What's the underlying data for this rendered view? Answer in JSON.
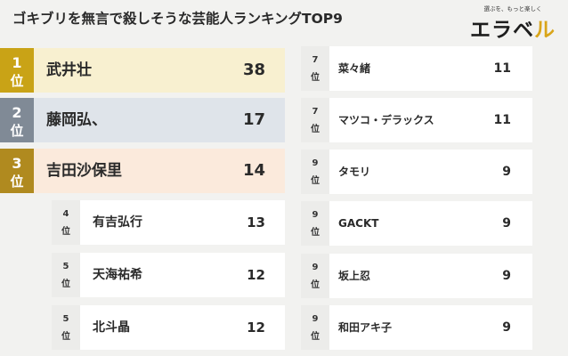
{
  "title": "ゴキブリを無言で殺しそうな芸能人ランキングTOP9",
  "logo": {
    "tagline": "選ぶを、もっと楽しく",
    "mark_main": "エラベ",
    "mark_accent": "ル"
  },
  "rank_unit": "位",
  "left_column": [
    {
      "rank": "1",
      "name": "武井壮",
      "votes": "38",
      "medal": "gold"
    },
    {
      "rank": "2",
      "name": "藤岡弘、",
      "votes": "17",
      "medal": "silver"
    },
    {
      "rank": "3",
      "name": "吉田沙保里",
      "votes": "14",
      "medal": "bronze"
    },
    {
      "rank": "4",
      "name": "有吉弘行",
      "votes": "13"
    },
    {
      "rank": "5",
      "name": "天海祐希",
      "votes": "12"
    },
    {
      "rank": "5",
      "name": "北斗晶",
      "votes": "12"
    }
  ],
  "right_column": [
    {
      "rank": "7",
      "name": "菜々緒",
      "votes": "11"
    },
    {
      "rank": "7",
      "name": "マツコ・デラックス",
      "votes": "11"
    },
    {
      "rank": "9",
      "name": "タモリ",
      "votes": "9"
    },
    {
      "rank": "9",
      "name": "GACKT",
      "votes": "9"
    },
    {
      "rank": "9",
      "name": "坂上忍",
      "votes": "9"
    },
    {
      "rank": "9",
      "name": "和田アキ子",
      "votes": "9"
    }
  ]
}
